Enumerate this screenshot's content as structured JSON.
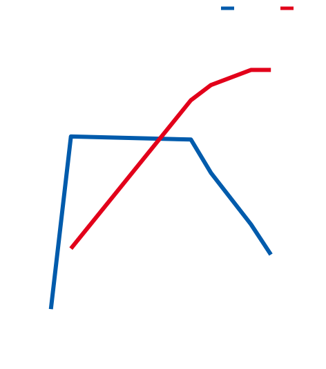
{
  "chart_data": {
    "type": "line",
    "title": "",
    "xlabel": "",
    "ylabel": "",
    "x": [
      1,
      2,
      3,
      4,
      5,
      6,
      7,
      8,
      9,
      10,
      11,
      12
    ],
    "xlim": [
      0,
      13
    ],
    "ylim": [
      0,
      100
    ],
    "grid": false,
    "legend_position": "top-right",
    "series": [
      {
        "color": "#005bac",
        "points": [
          {
            "x": 1,
            "y": 11
          },
          {
            "x": 2,
            "y": 68
          },
          {
            "x": 8,
            "y": 67
          },
          {
            "x": 9,
            "y": 56
          },
          {
            "x": 11,
            "y": 39
          },
          {
            "x": 12,
            "y": 29
          }
        ]
      },
      {
        "color": "#e2001a",
        "points": [
          {
            "x": 2,
            "y": 31
          },
          {
            "x": 8,
            "y": 80
          },
          {
            "x": 9,
            "y": 85
          },
          {
            "x": 11,
            "y": 90
          },
          {
            "x": 12,
            "y": 90
          }
        ]
      }
    ]
  }
}
